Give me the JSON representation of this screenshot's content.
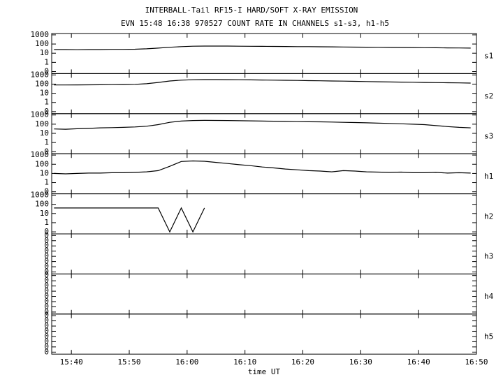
{
  "chart_data": {
    "type": "line",
    "title": "INTERBALL-Tail RF15-I HARD/SOFT X-RAY EMISSION",
    "subtitle": "EVN 15:48 16:38 970527  COUNT RATE IN CHANNELS s1-s3, h1-h5",
    "x_label": "time UT",
    "color": "#000000",
    "x": [
      937,
      939,
      941,
      943,
      945,
      947,
      949,
      951,
      953,
      955,
      957,
      959,
      961,
      963,
      965,
      967,
      969,
      971,
      973,
      975,
      977,
      979,
      981,
      983,
      985,
      987,
      989,
      991,
      993,
      995,
      997,
      999,
      1001,
      1003,
      1005,
      1007,
      1009
    ],
    "xlim": [
      936.6,
      1010
    ],
    "xticks": [
      {
        "value": 940,
        "label": "15:40"
      },
      {
        "value": 950,
        "label": "15:50"
      },
      {
        "value": 960,
        "label": "16:00"
      },
      {
        "value": 970,
        "label": "16:10"
      },
      {
        "value": 980,
        "label": "16:20"
      },
      {
        "value": 990,
        "label": "16:30"
      },
      {
        "value": 1000,
        "label": "16:40"
      },
      {
        "value": 1010,
        "label": "16:50"
      }
    ],
    "panels": [
      {
        "name": "s1",
        "log": true,
        "ylim": [
          0.06,
          1400
        ],
        "yticks": [
          1000,
          100,
          10,
          1,
          {
            "value": 0.1,
            "label": "0"
          }
        ],
        "values": [
          25,
          25,
          24,
          25,
          25,
          26,
          26,
          27,
          30,
          36,
          44,
          52,
          58,
          60,
          60,
          60,
          58,
          57,
          56,
          55,
          54,
          52,
          52,
          50,
          49,
          48,
          46,
          45,
          44,
          43,
          42,
          41,
          40,
          39,
          38,
          37,
          36
        ]
      },
      {
        "name": "s2",
        "log": true,
        "ylim": [
          0.06,
          1400
        ],
        "yticks": [
          1000,
          100,
          10,
          1,
          {
            "value": 0.1,
            "label": "0"
          }
        ],
        "values": [
          80,
          80,
          82,
          84,
          85,
          88,
          90,
          95,
          110,
          150,
          220,
          270,
          300,
          310,
          310,
          305,
          300,
          290,
          280,
          270,
          260,
          250,
          240,
          230,
          220,
          210,
          200,
          190,
          180,
          170,
          165,
          160,
          150,
          145,
          140,
          135,
          130
        ]
      },
      {
        "name": "s3",
        "log": true,
        "ylim": [
          0.06,
          1400
        ],
        "yticks": [
          1000,
          100,
          10,
          1,
          {
            "value": 0.1,
            "label": "0"
          }
        ],
        "values": [
          30,
          28,
          32,
          35,
          40,
          42,
          45,
          50,
          60,
          90,
          160,
          220,
          250,
          260,
          255,
          250,
          240,
          230,
          220,
          210,
          200,
          190,
          185,
          180,
          170,
          160,
          150,
          140,
          130,
          120,
          110,
          100,
          90,
          70,
          55,
          45,
          40
        ]
      },
      {
        "name": "h1",
        "log": true,
        "ylim": [
          0.06,
          1400
        ],
        "yticks": [
          1000,
          100,
          10,
          1,
          {
            "value": 0.1,
            "label": "0"
          }
        ],
        "values": [
          10,
          9,
          10,
          11,
          11,
          12,
          12,
          13,
          15,
          20,
          60,
          200,
          230,
          210,
          160,
          120,
          90,
          70,
          50,
          40,
          30,
          25,
          20,
          18,
          15,
          20,
          18,
          15,
          14,
          13,
          14,
          12,
          12,
          13,
          11,
          12,
          11
        ]
      },
      {
        "name": "h2",
        "log": true,
        "ylim": [
          0.06,
          1400
        ],
        "yticks": [
          1000,
          100,
          10,
          1,
          {
            "value": 0.1,
            "label": "0"
          }
        ],
        "values": [
          40,
          40,
          40,
          40,
          40,
          40,
          40,
          40,
          40,
          40,
          0.1,
          40,
          0.1,
          40,
          null,
          null,
          null,
          null,
          null,
          null,
          null,
          null,
          null,
          null,
          null,
          null,
          null,
          null,
          null,
          null,
          null,
          null,
          null,
          null,
          null,
          null,
          null
        ]
      },
      {
        "name": "h3",
        "log": false,
        "ylim": [
          0,
          1
        ],
        "yticks": [
          {
            "value": 0.05,
            "label": "0"
          },
          {
            "value": 0.18,
            "label": "0"
          },
          {
            "value": 0.31,
            "label": "0"
          },
          {
            "value": 0.44,
            "label": "0"
          },
          {
            "value": 0.57,
            "label": "0"
          },
          {
            "value": 0.7,
            "label": "0"
          },
          {
            "value": 0.83,
            "label": "0"
          },
          {
            "value": 0.96,
            "label": "0"
          }
        ]
      },
      {
        "name": "h4",
        "log": false,
        "ylim": [
          0,
          1
        ],
        "yticks": [
          {
            "value": 0.05,
            "label": "0"
          },
          {
            "value": 0.18,
            "label": "0"
          },
          {
            "value": 0.31,
            "label": "0"
          },
          {
            "value": 0.44,
            "label": "0"
          },
          {
            "value": 0.57,
            "label": "0"
          },
          {
            "value": 0.7,
            "label": "0"
          },
          {
            "value": 0.83,
            "label": "0"
          },
          {
            "value": 0.96,
            "label": "0"
          }
        ]
      },
      {
        "name": "h5",
        "log": false,
        "ylim": [
          0,
          1
        ],
        "yticks": [
          {
            "value": 0.05,
            "label": "0"
          },
          {
            "value": 0.18,
            "label": "0"
          },
          {
            "value": 0.31,
            "label": "0"
          },
          {
            "value": 0.44,
            "label": "0"
          },
          {
            "value": 0.57,
            "label": "0"
          },
          {
            "value": 0.7,
            "label": "0"
          },
          {
            "value": 0.83,
            "label": "0"
          },
          {
            "value": 0.96,
            "label": "0"
          }
        ]
      }
    ]
  }
}
